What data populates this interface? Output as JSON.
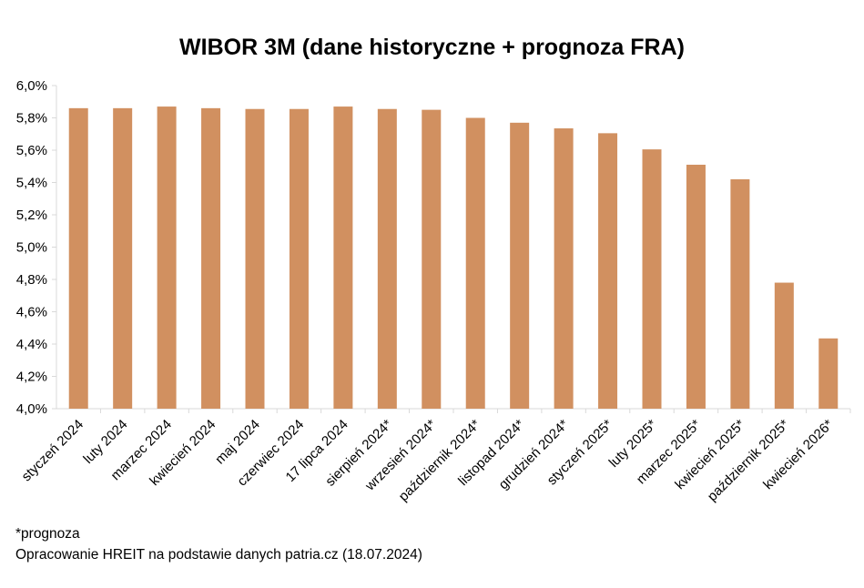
{
  "chart_data": {
    "type": "bar",
    "title": "WIBOR 3M (dane historyczne + prognoza FRA)",
    "categories": [
      "styczeń 2024",
      "luty 2024",
      "marzec 2024",
      "kwiecień 2024",
      "maj 2024",
      "czerwiec 2024",
      "17 lipca 2024",
      "sierpień 2024*",
      "wrzesień 2024*",
      "październik 2024*",
      "listopad 2024*",
      "grudzień 2024*",
      "styczeń 2025*",
      "luty 2025*",
      "marzec 2025*",
      "kwiecień 2025*",
      "październik 2025*",
      "kwiecień 2026*"
    ],
    "values": [
      5.86,
      5.86,
      5.87,
      5.86,
      5.855,
      5.855,
      5.87,
      5.855,
      5.85,
      5.8,
      5.77,
      5.735,
      5.705,
      5.605,
      5.51,
      5.42,
      4.78,
      4.435
    ],
    "ylim": [
      4.0,
      6.0
    ],
    "yticks": [
      "4,0%",
      "4,2%",
      "4,4%",
      "4,6%",
      "4,8%",
      "5,0%",
      "5,2%",
      "5,4%",
      "5,6%",
      "5,8%",
      "6,0%"
    ],
    "xlabel": "",
    "ylabel": "",
    "grid": false,
    "bar_color": "#D19060",
    "axis_color": "#d9d9d9"
  },
  "notes": {
    "forecast": "*prognoza",
    "source": "Opracowanie HREIT na podstawie danych patria.cz (18.07.2024)"
  }
}
